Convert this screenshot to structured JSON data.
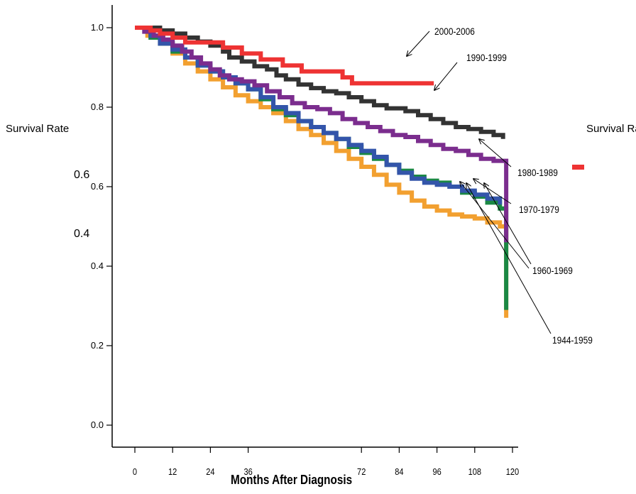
{
  "chart_data": {
    "type": "line",
    "title": "",
    "xlabel": "Months After Diagnosis",
    "ylabel": "Survival Rate",
    "right_ylabel": "Survival Rate",
    "x_ticks": [
      "0",
      "12",
      "24",
      "36",
      "72",
      "84",
      "96",
      "108",
      "120"
    ],
    "y_ticks": [
      "0.0",
      "0.2",
      "0.4",
      "0.6",
      "0.8",
      "1.0"
    ],
    "extra_labels": [
      "0.6",
      "0.4"
    ],
    "xlim": [
      0,
      120
    ],
    "ylim": [
      0,
      1.0
    ],
    "grid": false,
    "series": [
      {
        "name": "2000-2006",
        "color": "#ee3333",
        "points": [
          [
            0,
            1.0
          ],
          [
            5,
            0.993
          ],
          [
            8,
            0.985
          ],
          [
            12,
            0.975
          ],
          [
            16,
            0.963
          ],
          [
            24,
            0.963
          ],
          [
            28,
            0.95
          ],
          [
            33,
            0.95
          ],
          [
            34,
            0.935
          ],
          [
            40,
            0.935
          ],
          [
            40,
            0.92
          ],
          [
            46,
            0.92
          ],
          [
            47,
            0.905
          ],
          [
            52,
            0.905
          ],
          [
            53,
            0.89
          ],
          [
            66,
            0.89
          ],
          [
            66,
            0.875
          ],
          [
            69,
            0.875
          ],
          [
            69,
            0.86
          ],
          [
            95,
            0.86
          ]
        ]
      },
      {
        "name": "1990-1999",
        "color": "#333333",
        "points": [
          [
            0,
            1.0
          ],
          [
            8,
            0.993
          ],
          [
            12,
            0.985
          ],
          [
            16,
            0.975
          ],
          [
            20,
            0.965
          ],
          [
            24,
            0.955
          ],
          [
            28,
            0.94
          ],
          [
            30,
            0.925
          ],
          [
            34,
            0.915
          ],
          [
            38,
            0.903
          ],
          [
            42,
            0.895
          ],
          [
            45,
            0.88
          ],
          [
            48,
            0.87
          ],
          [
            52,
            0.857
          ],
          [
            56,
            0.848
          ],
          [
            60,
            0.84
          ],
          [
            64,
            0.835
          ],
          [
            68,
            0.825
          ],
          [
            72,
            0.815
          ],
          [
            76,
            0.805
          ],
          [
            80,
            0.797
          ],
          [
            86,
            0.79
          ],
          [
            90,
            0.78
          ],
          [
            94,
            0.77
          ],
          [
            98,
            0.76
          ],
          [
            102,
            0.75
          ],
          [
            106,
            0.745
          ],
          [
            110,
            0.738
          ],
          [
            114,
            0.73
          ],
          [
            117,
            0.72
          ]
        ]
      },
      {
        "name": "1980-1989",
        "color": "#7b2d8e",
        "points": [
          [
            0,
            1.0
          ],
          [
            3,
            0.99
          ],
          [
            6,
            0.98
          ],
          [
            9,
            0.97
          ],
          [
            12,
            0.955
          ],
          [
            15,
            0.94
          ],
          [
            18,
            0.925
          ],
          [
            21,
            0.91
          ],
          [
            24,
            0.895
          ],
          [
            27,
            0.88
          ],
          [
            30,
            0.87
          ],
          [
            34,
            0.865
          ],
          [
            38,
            0.855
          ],
          [
            42,
            0.84
          ],
          [
            46,
            0.825
          ],
          [
            50,
            0.81
          ],
          [
            54,
            0.8
          ],
          [
            58,
            0.795
          ],
          [
            62,
            0.785
          ],
          [
            66,
            0.77
          ],
          [
            70,
            0.76
          ],
          [
            74,
            0.75
          ],
          [
            78,
            0.74
          ],
          [
            82,
            0.73
          ],
          [
            86,
            0.725
          ],
          [
            90,
            0.715
          ],
          [
            94,
            0.705
          ],
          [
            98,
            0.695
          ],
          [
            102,
            0.69
          ],
          [
            106,
            0.68
          ],
          [
            110,
            0.67
          ],
          [
            114,
            0.665
          ],
          [
            118,
            0.645
          ],
          [
            118,
            0.46
          ]
        ]
      },
      {
        "name": "1970-1979",
        "color": "#3355aa",
        "points": [
          [
            0,
            1.0
          ],
          [
            5,
            0.98
          ],
          [
            8,
            0.96
          ],
          [
            12,
            0.945
          ],
          [
            16,
            0.925
          ],
          [
            20,
            0.905
          ],
          [
            24,
            0.89
          ],
          [
            28,
            0.875
          ],
          [
            32,
            0.86
          ],
          [
            36,
            0.845
          ],
          [
            40,
            0.825
          ],
          [
            44,
            0.8
          ],
          [
            48,
            0.785
          ],
          [
            52,
            0.765
          ],
          [
            56,
            0.75
          ],
          [
            60,
            0.735
          ],
          [
            64,
            0.72
          ],
          [
            68,
            0.705
          ],
          [
            72,
            0.69
          ],
          [
            76,
            0.675
          ],
          [
            80,
            0.655
          ],
          [
            84,
            0.635
          ],
          [
            88,
            0.62
          ],
          [
            92,
            0.61
          ],
          [
            96,
            0.605
          ],
          [
            100,
            0.6
          ],
          [
            104,
            0.59
          ],
          [
            108,
            0.58
          ],
          [
            112,
            0.57
          ],
          [
            116,
            0.555
          ]
        ]
      },
      {
        "name": "1960-1969",
        "color": "#1a8844",
        "points": [
          [
            0,
            1.0
          ],
          [
            5,
            0.975
          ],
          [
            8,
            0.96
          ],
          [
            12,
            0.94
          ],
          [
            16,
            0.925
          ],
          [
            20,
            0.905
          ],
          [
            24,
            0.89
          ],
          [
            28,
            0.875
          ],
          [
            32,
            0.86
          ],
          [
            36,
            0.845
          ],
          [
            40,
            0.82
          ],
          [
            44,
            0.795
          ],
          [
            48,
            0.78
          ],
          [
            52,
            0.765
          ],
          [
            56,
            0.75
          ],
          [
            60,
            0.735
          ],
          [
            64,
            0.72
          ],
          [
            68,
            0.7
          ],
          [
            72,
            0.685
          ],
          [
            76,
            0.67
          ],
          [
            80,
            0.655
          ],
          [
            84,
            0.64
          ],
          [
            88,
            0.625
          ],
          [
            92,
            0.615
          ],
          [
            96,
            0.61
          ],
          [
            100,
            0.6
          ],
          [
            104,
            0.585
          ],
          [
            108,
            0.575
          ],
          [
            112,
            0.56
          ],
          [
            116,
            0.545
          ],
          [
            118,
            0.53
          ],
          [
            118,
            0.29
          ]
        ]
      },
      {
        "name": "1944-1959",
        "color": "#f2a030",
        "points": [
          [
            0,
            1.0
          ],
          [
            4,
            0.98
          ],
          [
            8,
            0.96
          ],
          [
            12,
            0.935
          ],
          [
            16,
            0.91
          ],
          [
            20,
            0.89
          ],
          [
            24,
            0.87
          ],
          [
            28,
            0.85
          ],
          [
            32,
            0.83
          ],
          [
            36,
            0.815
          ],
          [
            40,
            0.8
          ],
          [
            44,
            0.785
          ],
          [
            48,
            0.765
          ],
          [
            52,
            0.745
          ],
          [
            56,
            0.73
          ],
          [
            60,
            0.71
          ],
          [
            64,
            0.69
          ],
          [
            68,
            0.67
          ],
          [
            72,
            0.65
          ],
          [
            76,
            0.63
          ],
          [
            80,
            0.605
          ],
          [
            84,
            0.585
          ],
          [
            88,
            0.565
          ],
          [
            92,
            0.55
          ],
          [
            96,
            0.54
          ],
          [
            100,
            0.53
          ],
          [
            104,
            0.525
          ],
          [
            108,
            0.52
          ],
          [
            112,
            0.51
          ],
          [
            116,
            0.5
          ],
          [
            118,
            0.49
          ],
          [
            118,
            0.27
          ]
        ]
      }
    ]
  }
}
